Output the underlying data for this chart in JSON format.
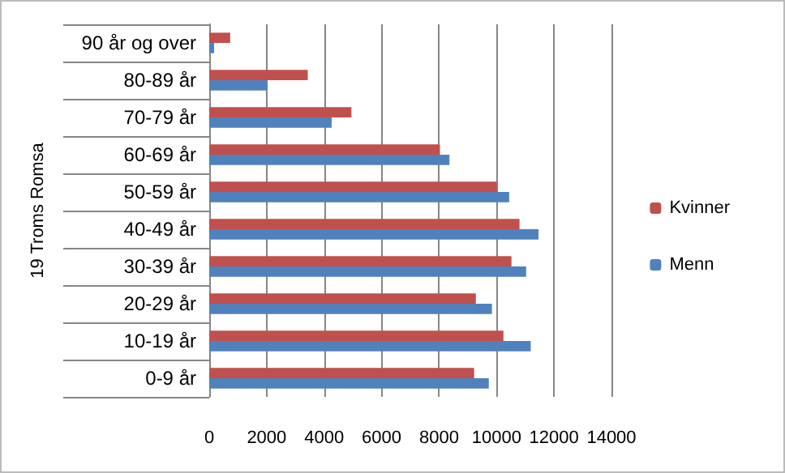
{
  "chart_data": {
    "type": "bar",
    "orientation": "horizontal",
    "ylabel": "19 Troms Romsa",
    "categories": [
      "90 år og over",
      "80-89 år",
      "70-79 år",
      "60-69 år",
      "50-59 år",
      "40-49 år",
      "30-39 år",
      "20-29 år",
      "10-19 år",
      "0-9 år"
    ],
    "series": [
      {
        "name": "Kvinner",
        "color": "#c0504d",
        "values": [
          730,
          3430,
          4950,
          8030,
          10010,
          10800,
          10520,
          9280,
          10240,
          9220
        ]
      },
      {
        "name": "Menn",
        "color": "#4f81bd",
        "values": [
          170,
          2030,
          4260,
          8360,
          10440,
          11460,
          11030,
          9840,
          11190,
          9730
        ]
      }
    ],
    "xlim": [
      0,
      14000
    ],
    "xticks": [
      0,
      2000,
      4000,
      6000,
      8000,
      10000,
      12000,
      14000
    ],
    "grid": "x",
    "legend": "right"
  }
}
